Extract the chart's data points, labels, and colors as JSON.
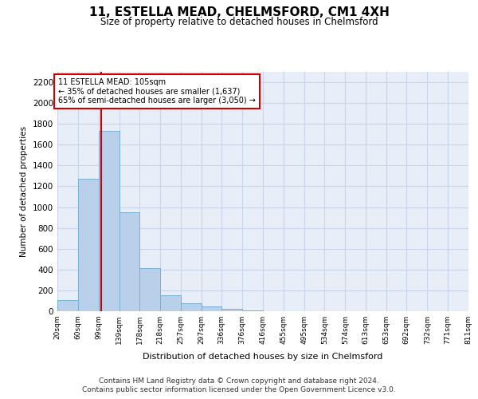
{
  "title": "11, ESTELLA MEAD, CHELMSFORD, CM1 4XH",
  "subtitle": "Size of property relative to detached houses in Chelmsford",
  "xlabel": "Distribution of detached houses by size in Chelmsford",
  "ylabel": "Number of detached properties",
  "bin_labels": [
    "20sqm",
    "60sqm",
    "99sqm",
    "139sqm",
    "178sqm",
    "218sqm",
    "257sqm",
    "297sqm",
    "336sqm",
    "376sqm",
    "416sqm",
    "455sqm",
    "495sqm",
    "534sqm",
    "574sqm",
    "613sqm",
    "653sqm",
    "692sqm",
    "732sqm",
    "771sqm",
    "811sqm"
  ],
  "bar_values": [
    110,
    1270,
    1730,
    950,
    415,
    155,
    80,
    45,
    25,
    8,
    3,
    1,
    1,
    0,
    0,
    0,
    0,
    0,
    0,
    0
  ],
  "bin_edges": [
    20,
    60,
    99,
    139,
    178,
    218,
    257,
    297,
    336,
    376,
    416,
    455,
    495,
    534,
    574,
    613,
    653,
    692,
    732,
    771,
    811
  ],
  "bar_color": "#b8d0ea",
  "bar_edge_color": "#7aafd4",
  "property_size": 105,
  "vline_color": "#cc0000",
  "annotation_text_line1": "11 ESTELLA MEAD: 105sqm",
  "annotation_text_line2": "← 35% of detached houses are smaller (1,637)",
  "annotation_text_line3": "65% of semi-detached houses are larger (3,050) →",
  "annotation_box_color": "#cc0000",
  "annotation_bg_color": "#ffffff",
  "ylim": [
    0,
    2300
  ],
  "yticks": [
    0,
    200,
    400,
    600,
    800,
    1000,
    1200,
    1400,
    1600,
    1800,
    2000,
    2200
  ],
  "grid_color": "#c8d4e8",
  "background_color": "#e8eef8",
  "footer_line1": "Contains HM Land Registry data © Crown copyright and database right 2024.",
  "footer_line2": "Contains public sector information licensed under the Open Government Licence v3.0."
}
